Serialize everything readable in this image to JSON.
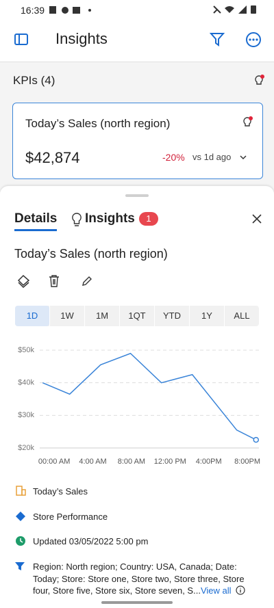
{
  "status_bar": {
    "time": "16:39"
  },
  "app_bar": {
    "title": "Insights"
  },
  "kpis": {
    "heading": "KPIs (4)",
    "card": {
      "title": "Today’s Sales (north region)",
      "value": "$42,874",
      "change": "-20%",
      "comparison": "vs 1d ago"
    }
  },
  "panel": {
    "tabs": [
      "Details",
      "Insights"
    ],
    "badge": "1",
    "title": "Today’s Sales (north region)",
    "ranges": [
      "1D",
      "1W",
      "1M",
      "1QT",
      "YTD",
      "1Y",
      "ALL"
    ],
    "selected_range": 0
  },
  "chart_data": {
    "type": "line",
    "color": "#3a84d8",
    "x": [
      -1.2,
      1.6,
      4.8,
      7.9,
      11.1,
      14.3,
      18.9,
      20.9
    ],
    "series": [
      {
        "name": "Today’s Sales",
        "color": "#3a84d8",
        "values": [
          40000,
          36500,
          45500,
          49000,
          40000,
          42500,
          25500,
          22500
        ]
      }
    ],
    "xlim": [
      -1.5,
      21.2
    ],
    "xticks": [
      {
        "value": 0,
        "label": "00:00 AM"
      },
      {
        "value": 4,
        "label": "4:00 AM"
      },
      {
        "value": 8,
        "label": "8:00 AM"
      },
      {
        "value": 12,
        "label": "12:00 PM"
      },
      {
        "value": 16,
        "label": "4:00PM"
      },
      {
        "value": 20,
        "label": "8:00PM"
      }
    ],
    "ylim": [
      20000,
      50000
    ],
    "yticks": [
      {
        "value": 20000,
        "label": "$20k"
      },
      {
        "value": 30000,
        "label": "$30k"
      },
      {
        "value": 40000,
        "label": "$40k"
      },
      {
        "value": 50000,
        "label": "$50k"
      }
    ],
    "grid": true
  },
  "details": {
    "items": [
      "Today’s Sales",
      "Store Performance",
      "Updated 03/05/2022 5:00 pm"
    ],
    "filters": "Region: North region; Country: USA, Canada; Date: Today; Store: Store one, Store two, Store three, Store four, Store five, Store six,  Store seven, S...",
    "link": "View all"
  }
}
